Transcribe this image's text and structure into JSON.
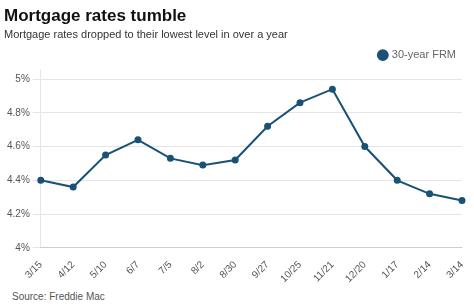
{
  "chart_data": {
    "type": "line",
    "title": "Mortgage rates tumble",
    "subtitle": "Mortgage rates dropped to their lowest level in over a year",
    "source": "Source: Freddie Mac",
    "categories": [
      "3/15",
      "4/12",
      "5/10",
      "6/7",
      "7/5",
      "8/2",
      "8/30",
      "9/27",
      "10/25",
      "11/21",
      "12/20",
      "1/17",
      "2/14",
      "3/14"
    ],
    "series": [
      {
        "name": "30-year FRM",
        "color": "#1a5276",
        "marker": "circle",
        "values": [
          4.4,
          4.36,
          4.55,
          4.64,
          4.53,
          4.49,
          4.52,
          4.72,
          4.86,
          4.94,
          4.6,
          4.4,
          4.32,
          4.28
        ]
      }
    ],
    "ylim": [
      4.0,
      5.05
    ],
    "yticks": [
      {
        "value": 4.0,
        "label": "4%"
      },
      {
        "value": 4.2,
        "label": "4.2%"
      },
      {
        "value": 4.4,
        "label": "4.4%"
      },
      {
        "value": 4.6,
        "label": "4.6%"
      },
      {
        "value": 4.8,
        "label": "4.8%"
      },
      {
        "value": 5.0,
        "label": "5%"
      }
    ],
    "grid": "y",
    "legend": "upper right"
  }
}
